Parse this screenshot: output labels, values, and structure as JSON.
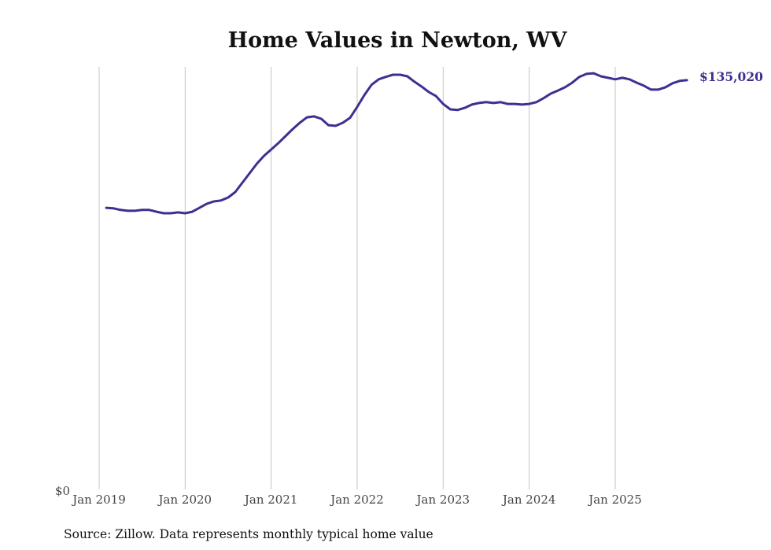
{
  "chart_data": {
    "type": "line",
    "title": "Home Values in Newton, WV",
    "xlabel": "",
    "ylabel": "",
    "source": "Source: Zillow. Data represents monthly typical home value",
    "y_zero_label": "$0",
    "end_label": "$135,020",
    "x_ticks": [
      "Jan 2019",
      "Jan 2020",
      "Jan 2021",
      "Jan 2022",
      "Jan 2023",
      "Jan 2024",
      "Jan 2025"
    ],
    "x_start": "Feb 2019",
    "x_end": "Nov 2025",
    "grid": "vertical",
    "line_color": "#3b3191",
    "series": [
      {
        "name": "Typical home value",
        "start_month_index": 1,
        "values": [
          93000,
          92800,
          92300,
          92000,
          92000,
          92300,
          92300,
          91700,
          91200,
          91200,
          91500,
          91200,
          91700,
          93000,
          94300,
          95100,
          95400,
          96400,
          98200,
          101300,
          104400,
          107500,
          110100,
          112200,
          114300,
          116600,
          118900,
          121000,
          122800,
          123100,
          122300,
          120200,
          120000,
          121000,
          122600,
          126200,
          130100,
          133500,
          135300,
          136100,
          136800,
          136800,
          136300,
          134500,
          132900,
          131100,
          129800,
          127200,
          125400,
          125200,
          125900,
          127000,
          127500,
          127800,
          127500,
          127800,
          127200,
          127200,
          127000,
          127200,
          127800,
          129100,
          130600,
          131600,
          132700,
          134200,
          136100,
          137100,
          137300,
          136300,
          135800,
          135300,
          135800,
          135300,
          134200,
          133200,
          131900,
          131900,
          132700,
          134000,
          134800,
          135020
        ]
      }
    ],
    "ylim": [
      0,
      139400
    ]
  }
}
